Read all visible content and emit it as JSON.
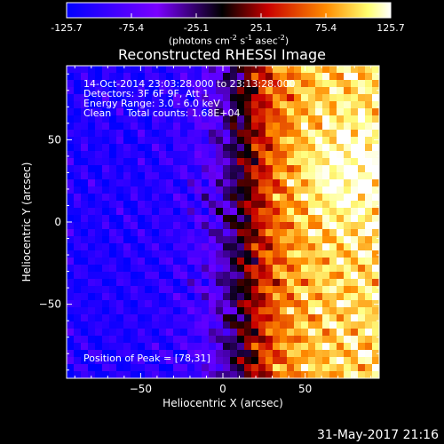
{
  "chart_data": {
    "type": "heatmap",
    "title": "Reconstructed RHESSI Image",
    "xlabel": "Heliocentric X (arcsec)",
    "ylabel": "Heliocentric Y (arcsec)",
    "xlim": [
      -95,
      95
    ],
    "ylim": [
      -95,
      95
    ],
    "xticks": [
      -50,
      0,
      50
    ],
    "yticks": [
      -50,
      0,
      50
    ],
    "colorbar": {
      "ticks": [
        "-125.7",
        "-75.4",
        "-25.1",
        "25.1",
        "75.4",
        "125.7"
      ],
      "range": [
        -125.7,
        125.7
      ],
      "units_label": "(photons cm-2 s-1 asec-2)",
      "colors": [
        "#0000ff",
        "#6a00ff",
        "#000000",
        "#c80000",
        "#ff8c00",
        "#ffff80",
        "#ffffff"
      ]
    },
    "annotations": {
      "time_range": "14-Oct-2014 23:03:28.000 to 23:13:28.000",
      "detectors": "Detectors: 3F 6F 9F, Att 1",
      "energy": "Energy Range: 3.0 - 6.0 keV",
      "method": "Clean     Total counts: 1.68E+04",
      "peak": "Position of Peak = [78,31]"
    },
    "peak_position": [
      78,
      31
    ]
  },
  "footer": {
    "date": "31-May-2017 21:16"
  }
}
